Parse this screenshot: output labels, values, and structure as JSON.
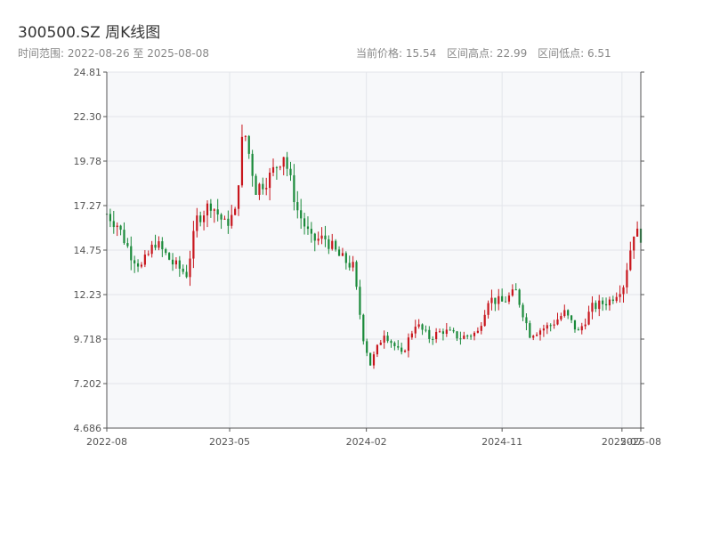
{
  "header": {
    "title": "300500.SZ 周K线图",
    "range_label": "时间范围: 2022-08-26 至 2025-08-08",
    "current_price_label": "当前价格: 15.54",
    "high_label": "区间高点: 22.99",
    "low_label": "区间低点: 6.51"
  },
  "chart_data": {
    "type": "candlestick",
    "title": "300500.SZ 周K线图",
    "xlabel": "",
    "ylabel": "",
    "ylim": [
      4.686,
      24.81
    ],
    "y_ticks": [
      "24.81",
      "22.30",
      "19.78",
      "17.27",
      "14.75",
      "12.23",
      "9.718",
      "7.202",
      "4.686"
    ],
    "x_ticks": [
      "2022-08",
      "2023-05",
      "2024-02",
      "2024-11",
      "2025-07",
      "2025-08"
    ],
    "grid": true,
    "colors": {
      "up": "#c8161d",
      "down": "#1a8a3a"
    },
    "date_range": [
      "2022-08-26",
      "2025-08-08"
    ],
    "anchors": [
      [
        "2022-08-26",
        16.8
      ],
      [
        "2022-09-16",
        16.2
      ],
      [
        "2022-10-14",
        14.5
      ],
      [
        "2022-11-04",
        13.8
      ],
      [
        "2022-12-02",
        15.2
      ],
      [
        "2023-01-06",
        14.0
      ],
      [
        "2023-02-03",
        13.4
      ],
      [
        "2023-02-24",
        16.5
      ],
      [
        "2023-03-24",
        17.4
      ],
      [
        "2023-04-21",
        16.2
      ],
      [
        "2023-05-12",
        16.8
      ],
      [
        "2023-05-26",
        20.8
      ],
      [
        "2023-06-02",
        21.2
      ],
      [
        "2023-06-23",
        18.2
      ],
      [
        "2023-07-21",
        18.9
      ],
      [
        "2023-08-18",
        20.2
      ],
      [
        "2023-09-15",
        17.0
      ],
      [
        "2023-10-13",
        15.3
      ],
      [
        "2023-11-10",
        15.4
      ],
      [
        "2023-12-08",
        14.4
      ],
      [
        "2024-01-05",
        13.8
      ],
      [
        "2024-01-26",
        9.8
      ],
      [
        "2024-02-09",
        8.3
      ],
      [
        "2024-03-08",
        10.1
      ],
      [
        "2024-04-12",
        8.8
      ],
      [
        "2024-05-10",
        10.6
      ],
      [
        "2024-06-07",
        9.8
      ],
      [
        "2024-07-05",
        10.2
      ],
      [
        "2024-08-09",
        9.8
      ],
      [
        "2024-09-13",
        10.1
      ],
      [
        "2024-10-04",
        12.0
      ],
      [
        "2024-11-01",
        11.8
      ],
      [
        "2024-11-29",
        12.4
      ],
      [
        "2024-12-27",
        10.0
      ],
      [
        "2025-02-07",
        10.5
      ],
      [
        "2025-03-07",
        11.2
      ],
      [
        "2025-04-04",
        10.1
      ],
      [
        "2025-05-02",
        11.5
      ],
      [
        "2025-06-06",
        11.9
      ],
      [
        "2025-07-04",
        12.8
      ],
      [
        "2025-07-25",
        15.8
      ],
      [
        "2025-08-08",
        15.54
      ]
    ]
  }
}
